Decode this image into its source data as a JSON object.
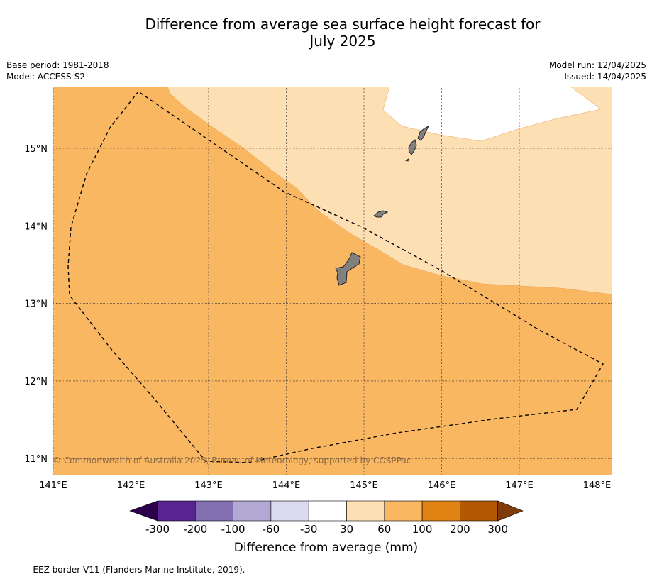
{
  "title_line1": "Difference from average sea surface height forecast for",
  "title_line2": "July 2025",
  "base_period": "Base period: 1981-2018",
  "model": "Model: ACCESS-S2",
  "model_run": "Model run: 12/04/2025",
  "issued": "Issued: 14/04/2025",
  "copyright": "© Commonwealth of Australia 2025, Bureau of Meteorology, supported by COSPPac",
  "map": {
    "lon_labels": [
      "141°E",
      "142°E",
      "143°E",
      "144°E",
      "145°E",
      "146°E",
      "147°E",
      "148°E"
    ],
    "lat_labels": [
      "15°N",
      "14°N",
      "13°N",
      "12°N",
      "11°N"
    ],
    "lon_range": [
      141,
      148.2
    ],
    "lat_range": [
      10.8,
      15.8
    ],
    "regions": [
      {
        "name": "anomaly 60 to 100 mm",
        "color": "#fab762"
      },
      {
        "name": "anomaly 30 to 60 mm",
        "color": "#fddfb4"
      },
      {
        "name": "anomaly -30 to 30 mm",
        "color": "#ffffff"
      }
    ],
    "land_color": "#808080"
  },
  "colorbar": {
    "ticks": [
      "-300",
      "-200",
      "-100",
      "-60",
      "-30",
      "30",
      "60",
      "100",
      "200",
      "300"
    ],
    "colors": [
      "#582590",
      "#8270b2",
      "#b1a8d3",
      "#dadbee",
      "#ffffff",
      "#fddfb4",
      "#fab762",
      "#e08214",
      "#b35906"
    ],
    "extend_low_color": "#2d004b",
    "extend_high_color": "#7f3b08",
    "label": "Difference from average (mm)"
  },
  "footnote": "--  --  -- EEZ border V11 (Flanders Marine Institute, 2019)."
}
